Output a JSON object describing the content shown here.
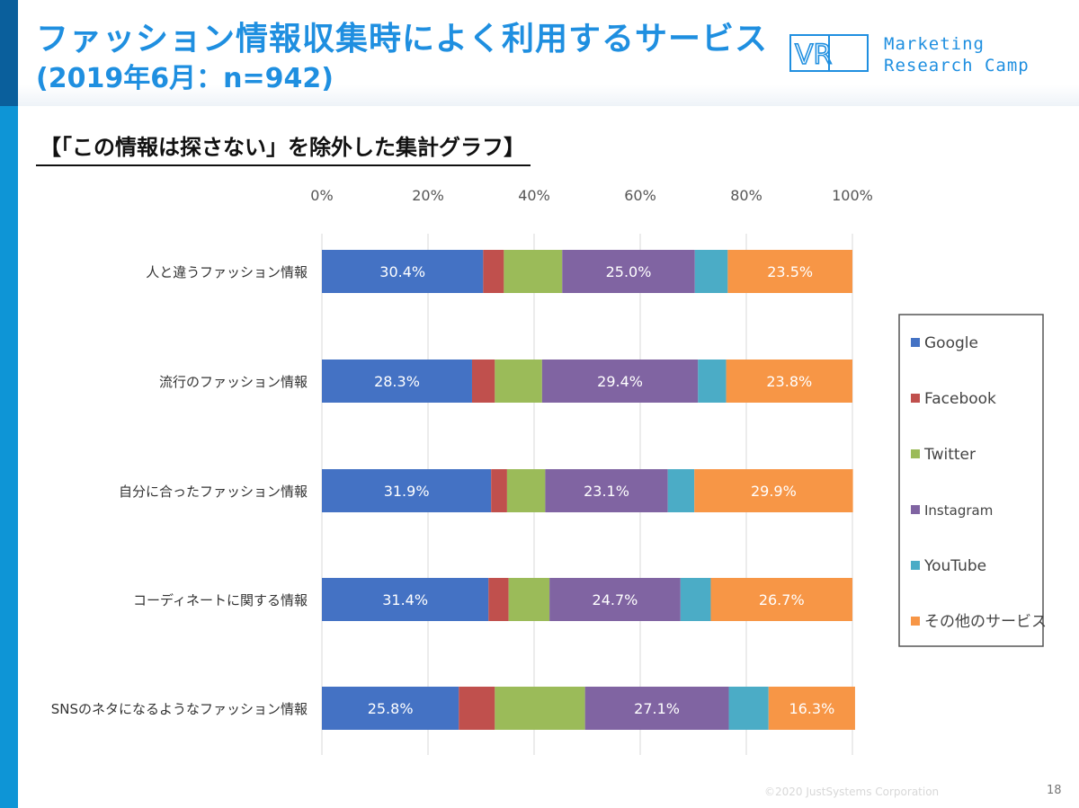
{
  "header": {
    "title": "ファッション情報収集時によく利用するサービス",
    "subtitle_line": "(2019年6月：n=942)"
  },
  "logo": {
    "mark_text": "VR",
    "line1": "Marketing",
    "line2": "Research Camp"
  },
  "section_heading": "【「この情報は探さない」を除外した集計グラフ】",
  "footer": {
    "copyright": "©2020 JustSystems Corporation",
    "page_number": "18"
  },
  "colors": {
    "accent": "#1f8fe0",
    "google": "#4472c4",
    "facebook": "#c0504d",
    "twitter": "#9bbb59",
    "instagram": "#8064a2",
    "youtube": "#4bacc6",
    "other": "#f79646"
  },
  "chart_data": {
    "type": "bar",
    "orientation": "horizontal",
    "stacked": true,
    "percent_stacked": true,
    "x_ticks": [
      "0%",
      "20%",
      "40%",
      "60%",
      "80%",
      "100%"
    ],
    "xlim": [
      0,
      100
    ],
    "x_axis_position": "top",
    "grid": true,
    "legend_position": "right",
    "categories": [
      "人と違うファッション情報",
      "流行のファッション情報",
      "自分に合ったファッション情報",
      "コーディネートに関する情報",
      "SNSのネタになるようなファッション情報"
    ],
    "series": [
      {
        "name": "Google",
        "color": "#4472c4",
        "values": [
          30.4,
          28.3,
          31.9,
          31.4,
          25.8
        ],
        "labels": [
          "30.4%",
          "28.3%",
          "31.9%",
          "31.4%",
          "25.8%"
        ]
      },
      {
        "name": "Facebook",
        "color": "#c0504d",
        "values": [
          3.9,
          4.3,
          3.0,
          3.8,
          6.8
        ],
        "labels": [
          "",
          "",
          "",
          "",
          ""
        ]
      },
      {
        "name": "Twitter",
        "color": "#9bbb59",
        "values": [
          11.0,
          8.9,
          7.2,
          7.7,
          17.0
        ],
        "labels": [
          "",
          "",
          "",
          "",
          ""
        ]
      },
      {
        "name": "Instagram",
        "color": "#8064a2",
        "values": [
          25.0,
          29.4,
          23.1,
          24.7,
          27.1
        ],
        "labels": [
          "25.0%",
          "29.4%",
          "23.1%",
          "24.7%",
          "27.1%"
        ]
      },
      {
        "name": "YouTube",
        "color": "#4bacc6",
        "values": [
          6.2,
          5.3,
          5.0,
          5.7,
          7.5
        ],
        "labels": [
          "",
          "",
          "",
          "",
          ""
        ]
      },
      {
        "name": "その他のサービス",
        "color": "#f79646",
        "values": [
          23.5,
          23.8,
          29.9,
          26.7,
          16.3
        ],
        "labels": [
          "23.5%",
          "23.8%",
          "29.9%",
          "26.7%",
          "16.3%"
        ]
      }
    ]
  }
}
